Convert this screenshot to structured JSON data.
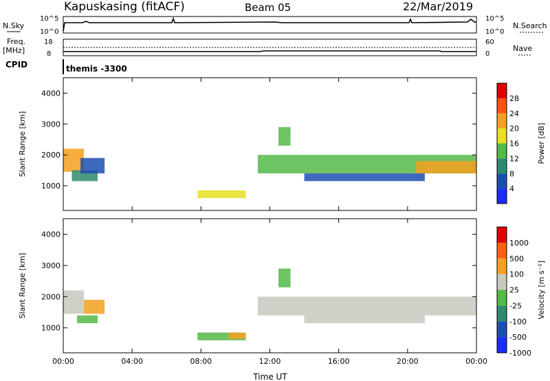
{
  "header": {
    "station": "Kapuskasing (fitACF)",
    "beam": "Beam 05",
    "date": "22/Mar/2019"
  },
  "top_panels": {
    "nsky_label": "N.Sky",
    "nsky_ticks": [
      "10^5",
      "10^0"
    ],
    "nsearch_label": "N.Search",
    "nsearch_ticks": [
      "10^5",
      "10^0"
    ],
    "freq_label": "Freq.",
    "freq_unit": "[MHz]",
    "freq_ticks": [
      "18",
      "8"
    ],
    "nave_label": "Nave",
    "nave_ticks": [
      "60",
      "0"
    ],
    "cpid_label": "CPID",
    "cpid_value": "themis -3300"
  },
  "chart_data": [
    {
      "type": "heatmap",
      "name": "power",
      "ylabel": "Slant Range [km]",
      "ylim": [
        200,
        4500
      ],
      "yticks": [
        "1000",
        "2000",
        "3000",
        "4000"
      ],
      "xlim": [
        0,
        24
      ],
      "xticks": [
        "00:00",
        "04:00",
        "08:00",
        "12:00",
        "16:00",
        "20:00",
        "00:00"
      ],
      "colorbar": {
        "label": "Power [dB]",
        "ticks": [
          "4",
          "8",
          "12",
          "16",
          "20",
          "24",
          "28"
        ],
        "colors": [
          "#1a2cff",
          "#1d4fb0",
          "#2f8a70",
          "#55b848",
          "#e8e020",
          "#f5a020",
          "#ff5010",
          "#e00000"
        ]
      },
      "blobs": [
        {
          "t0": 0.0,
          "t1": 1.2,
          "r0": 1450,
          "r1": 2200,
          "color": "#f5a020"
        },
        {
          "t0": 0.5,
          "t1": 2.0,
          "r0": 1150,
          "r1": 1500,
          "color": "#2f8a70"
        },
        {
          "t0": 1.0,
          "t1": 2.4,
          "r0": 1400,
          "r1": 1900,
          "color": "#1d4fb0"
        },
        {
          "t0": 7.8,
          "t1": 10.6,
          "r0": 600,
          "r1": 850,
          "color": "#e8e020"
        },
        {
          "t0": 11.3,
          "t1": 24.0,
          "r0": 1400,
          "r1": 2000,
          "color": "#55b848"
        },
        {
          "t0": 20.5,
          "t1": 24.0,
          "r0": 1400,
          "r1": 1800,
          "color": "#f5a020"
        },
        {
          "t0": 12.5,
          "t1": 13.2,
          "r0": 2300,
          "r1": 2900,
          "color": "#55b848"
        },
        {
          "t0": 14.0,
          "t1": 21.0,
          "r0": 1150,
          "r1": 1400,
          "color": "#1d4fb0"
        }
      ]
    },
    {
      "type": "heatmap",
      "name": "velocity",
      "ylabel": "Slant Range [km]",
      "ylim": [
        200,
        4500
      ],
      "yticks": [
        "1000",
        "2000",
        "3000",
        "4000"
      ],
      "xlim": [
        0,
        24
      ],
      "xticks": [
        "00:00",
        "04:00",
        "08:00",
        "12:00",
        "16:00",
        "20:00",
        "00:00"
      ],
      "xlabel": "Time UT",
      "colorbar": {
        "label": "Velocity [m s⁻¹]",
        "ticks": [
          "1000",
          "500",
          "100",
          "25",
          "-25",
          "-100",
          "-500",
          "-1000"
        ],
        "colors": [
          "#1a2cff",
          "#1d4fb0",
          "#2f8a70",
          "#55b848",
          "#c8c8c0",
          "#f5a020",
          "#ff6010",
          "#e00000"
        ]
      },
      "blobs": [
        {
          "t0": 0.0,
          "t1": 1.2,
          "r0": 1450,
          "r1": 2200,
          "color": "#c8c8c0"
        },
        {
          "t0": 0.8,
          "t1": 2.0,
          "r0": 1150,
          "r1": 1400,
          "color": "#55b848"
        },
        {
          "t0": 1.2,
          "t1": 2.4,
          "r0": 1450,
          "r1": 1900,
          "color": "#f5a020"
        },
        {
          "t0": 7.8,
          "t1": 10.6,
          "r0": 600,
          "r1": 850,
          "color": "#55b848"
        },
        {
          "t0": 9.6,
          "t1": 10.6,
          "r0": 650,
          "r1": 850,
          "color": "#f5a020"
        },
        {
          "t0": 11.3,
          "t1": 24.0,
          "r0": 1400,
          "r1": 2000,
          "color": "#c8c8c0"
        },
        {
          "t0": 12.5,
          "t1": 13.2,
          "r0": 2300,
          "r1": 2900,
          "color": "#55b848"
        },
        {
          "t0": 14.0,
          "t1": 21.0,
          "r0": 1150,
          "r1": 1400,
          "color": "#c8c8c0"
        }
      ]
    }
  ]
}
